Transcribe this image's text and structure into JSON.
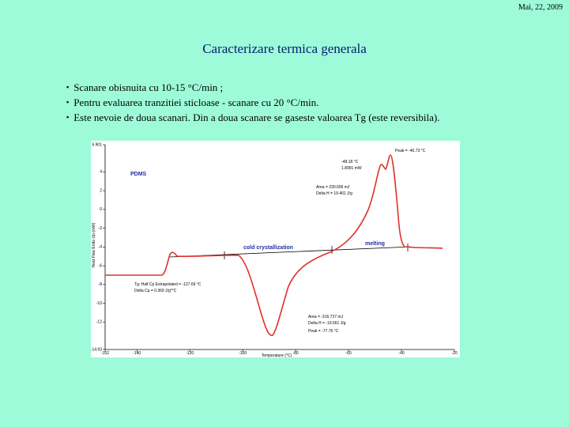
{
  "header": {
    "date": "Mai, 22, 2009",
    "title": "Caracterizare termica generala"
  },
  "bullets": [
    "Scanare obisnuita cu 10-15 °C/min ;",
    "Pentru evaluarea tranzitiei sticloase  - scanare cu 20 °C/min.",
    "Este nevoie de doua scanari. Din a doua scanare se gaseste valoarea Tg (este reversibila)."
  ],
  "figure": {
    "x_label": "Temperature (°C)",
    "y_label": "Heat Flow Endo Up (mW)",
    "xlim": [
      -152,
      -20
    ],
    "ylim": [
      -14.93,
      6.901
    ],
    "xticks": [
      -152,
      -140,
      -120,
      -100,
      -80,
      -60,
      -40,
      -20
    ],
    "yticks": [
      6.901,
      4,
      2,
      0,
      -2,
      -4,
      -6,
      -8,
      -10,
      -12,
      -14.93
    ],
    "annotations": {
      "sample": "PDMS",
      "cold": "cold crystallization",
      "melt": "melting",
      "peak_melt": "Peak = -40.73 °C",
      "onset_melt": "-48.18 °C",
      "height_melt": "1.8991 mW",
      "area_melt": "Area = 230.606 mJ",
      "dh_melt": "Delta H = 19.401 J/g",
      "tg": "Tg: Half Cp Extrapolated = -127.69 °C",
      "dcp": "Delta Cp = 0.369 J/g*°C",
      "area_cold": "Area = -316.727 mJ",
      "dh_cold": "Delta H = -19.561 J/g",
      "peak_cold": "Peak = -77.76 °C"
    }
  }
}
